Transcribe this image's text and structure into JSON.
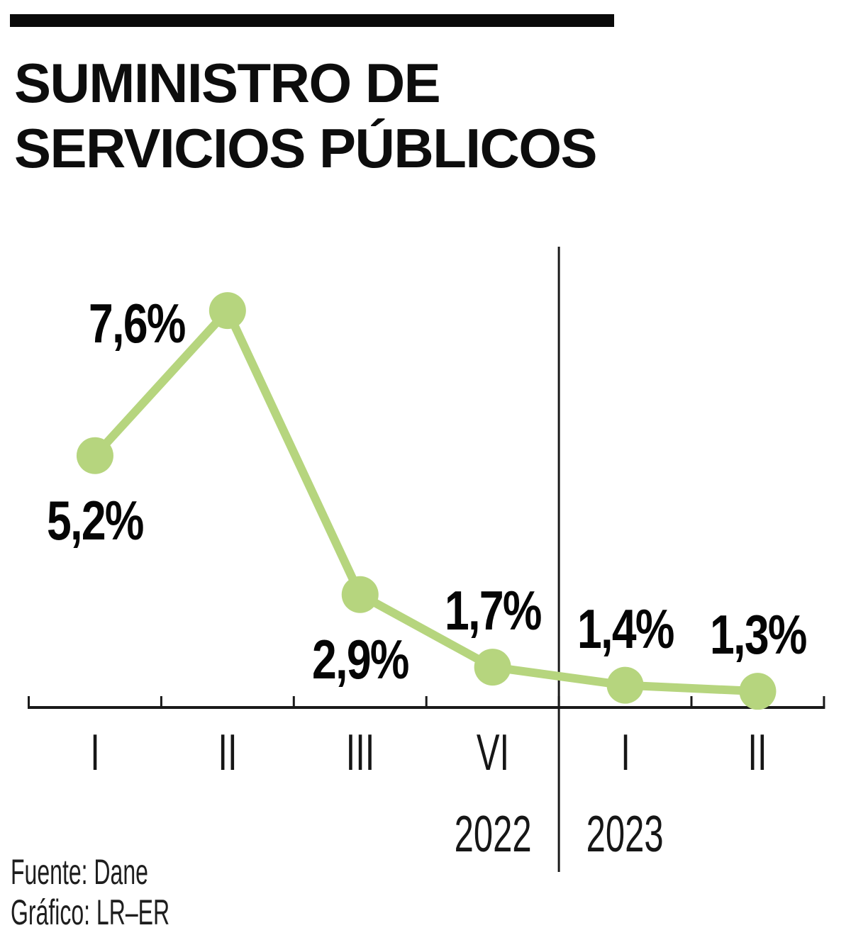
{
  "header": {
    "title_line1": "SUMINISTRO DE",
    "title_line2": "SERVICIOS PÚBLICOS"
  },
  "chart_data": {
    "type": "line",
    "title": "SUMINISTRO DE SERVICIOS PÚBLICOS",
    "unit": "%",
    "decimal_separator": ",",
    "categories": [
      "I",
      "II",
      "III",
      "VI",
      "I",
      "II"
    ],
    "values": [
      5.2,
      7.6,
      2.9,
      1.7,
      1.4,
      1.3
    ],
    "labels": [
      "5,2%",
      "7,6%",
      "2,9%",
      "1,7%",
      "1,4%",
      "1,3%"
    ],
    "label_positions": [
      "below",
      "left",
      "below",
      "above",
      "above",
      "above"
    ],
    "year_groups": [
      {
        "label": "2022",
        "point_indexes": [
          0,
          1,
          2,
          3
        ]
      },
      {
        "label": "2023",
        "point_indexes": [
          4,
          5
        ]
      }
    ],
    "divider_after_index": 3,
    "line_color": "#b6d57e",
    "marker_color": "#b6d57e",
    "axis_color": "#1a1a1a",
    "grid": false,
    "legend": false,
    "value_axis_labels_visible": false
  },
  "footer": {
    "source": "Fuente: Dane",
    "credit": "Gráfico: LR–ER"
  }
}
